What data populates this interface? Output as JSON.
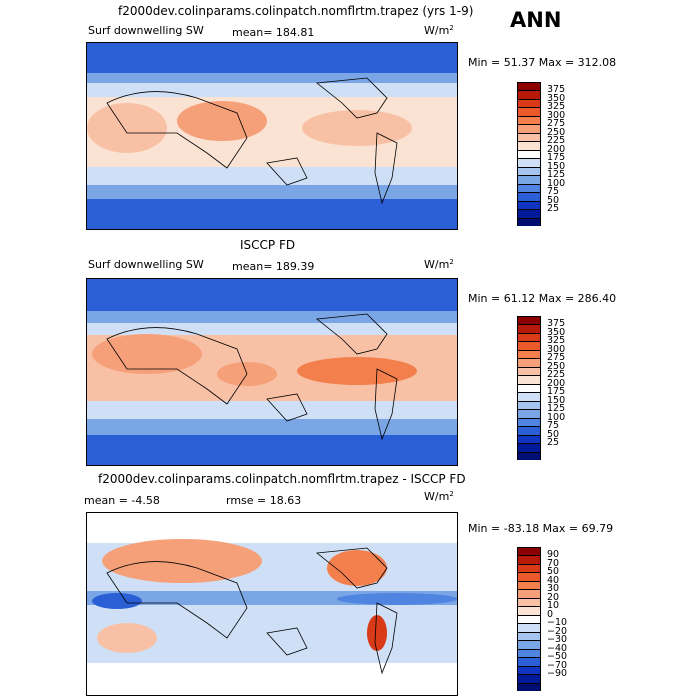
{
  "season": "ANN",
  "panels": [
    {
      "title": "f2000dev.colinparams.colinpatch.nomflrtm.trapez (yrs 1-9)",
      "variable": "Surf downwelling SW",
      "stats": "mean= 184.81",
      "units": "W/m",
      "units_sup": "2",
      "minmax": "Min =  51.37 Max = 312.08",
      "colorbar": {
        "labels": [
          "375",
          "350",
          "325",
          "300",
          "275",
          "250",
          "225",
          "200",
          "175",
          "150",
          "125",
          "100",
          "75",
          "50",
          "25"
        ],
        "colors": [
          "#8b0000",
          "#b81a0a",
          "#d93a18",
          "#ec5a2c",
          "#f37f4c",
          "#f6a07a",
          "#f8c1a5",
          "#fbe3d4",
          "#ffffff",
          "#cfe0f6",
          "#a5c4ee",
          "#7aa6e6",
          "#4f84e0",
          "#2a5fd6",
          "#0f35c2",
          "#001a9a",
          "#000e73"
        ]
      }
    },
    {
      "title": "ISCCP FD",
      "variable": "Surf downwelling SW",
      "stats": "mean= 189.39",
      "units": "W/m",
      "units_sup": "2",
      "minmax": "Min =  61.12 Max = 286.40",
      "colorbar": {
        "labels": [
          "375",
          "350",
          "325",
          "300",
          "275",
          "250",
          "225",
          "200",
          "175",
          "150",
          "125",
          "100",
          "75",
          "50",
          "25"
        ],
        "colors": [
          "#8b0000",
          "#b81a0a",
          "#d93a18",
          "#ec5a2c",
          "#f37f4c",
          "#f6a07a",
          "#f8c1a5",
          "#fbe3d4",
          "#ffffff",
          "#cfe0f6",
          "#a5c4ee",
          "#7aa6e6",
          "#4f84e0",
          "#2a5fd6",
          "#0f35c2",
          "#001a9a",
          "#000e73"
        ]
      }
    },
    {
      "title": "f2000dev.colinparams.colinpatch.nomflrtm.trapez - ISCCP FD",
      "variable": "",
      "stats": "mean =   -4.58",
      "stats2": "rmse =   18.63",
      "units": "W/m",
      "units_sup": "2",
      "minmax": "Min = -83.18 Max =  69.79",
      "colorbar": {
        "labels": [
          "90",
          "70",
          "50",
          "40",
          "30",
          "20",
          "10",
          "0",
          "−10",
          "−20",
          "−30",
          "−40",
          "−50",
          "−70",
          "−90"
        ],
        "colors": [
          "#8b0000",
          "#b81a0a",
          "#d93a18",
          "#ec5a2c",
          "#f37f4c",
          "#f6a07a",
          "#f8c1a5",
          "#fbe3d4",
          "#ffffff",
          "#cfe0f6",
          "#a5c4ee",
          "#7aa6e6",
          "#4f84e0",
          "#2a5fd6",
          "#0f35c2",
          "#001a9a",
          "#000e73"
        ]
      }
    }
  ]
}
